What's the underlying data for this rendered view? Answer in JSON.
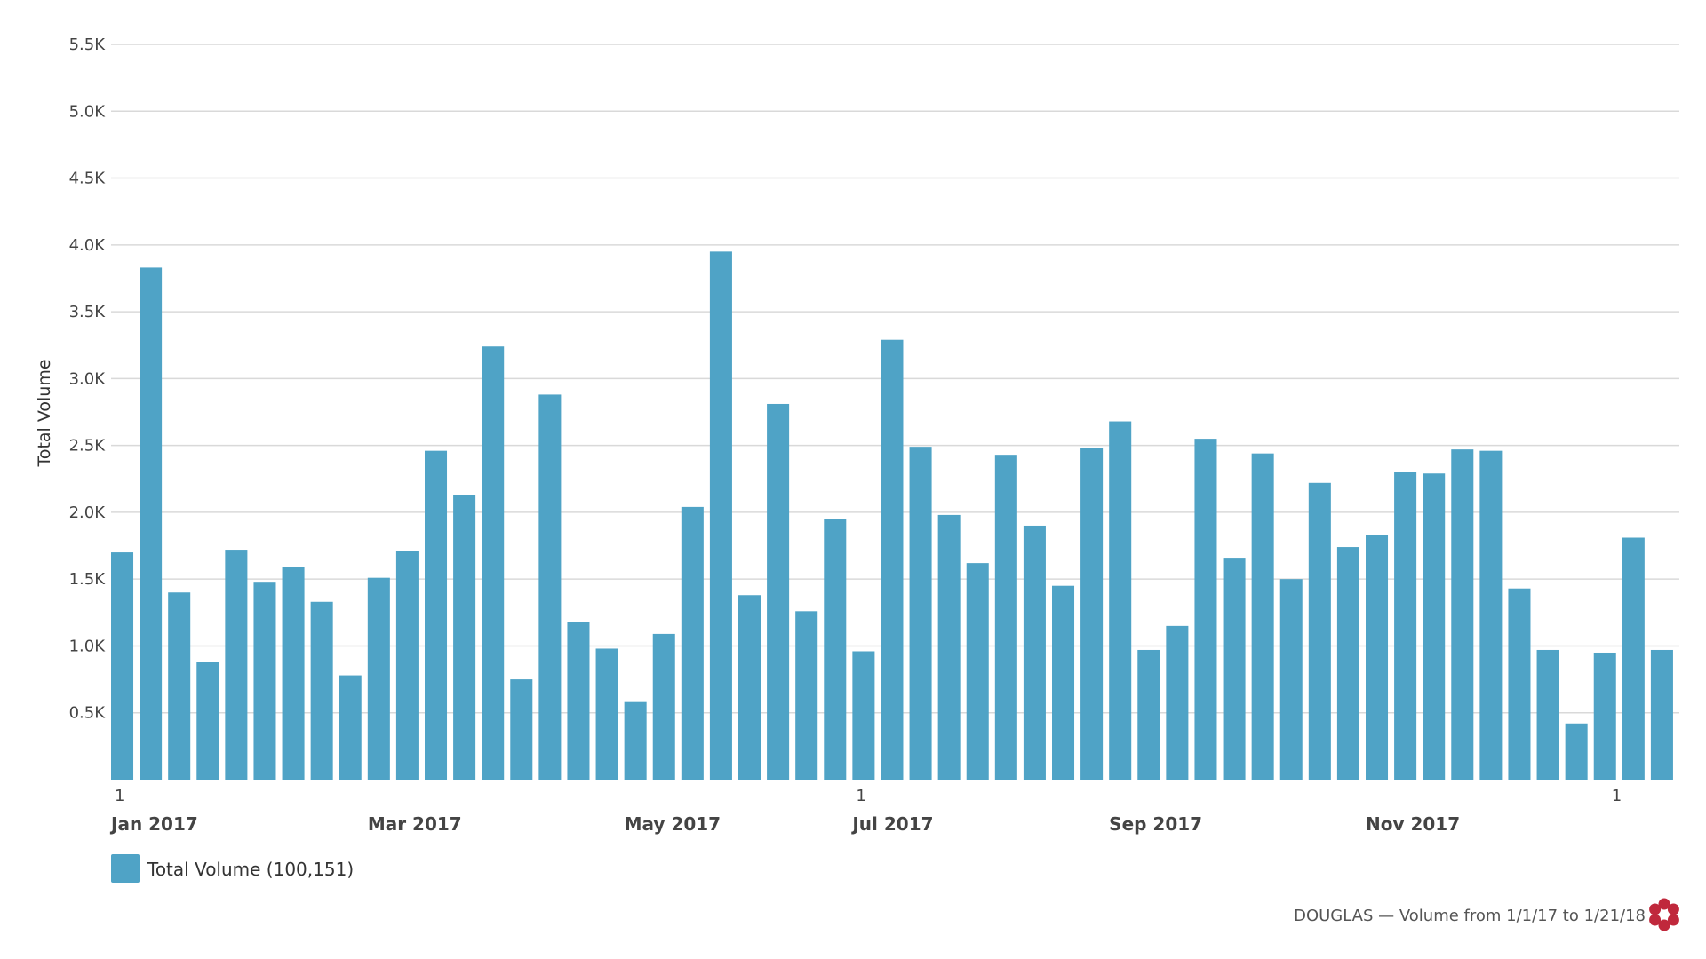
{
  "chart_data": {
    "type": "bar",
    "ylabel": "Total Volume",
    "ylim": [
      0,
      5500
    ],
    "yticks": [
      500,
      1000,
      1500,
      2000,
      2500,
      3000,
      3500,
      4000,
      4500,
      5000,
      5500
    ],
    "ytick_labels": [
      "0.5K",
      "1.0K",
      "1.5K",
      "2.0K",
      "2.5K",
      "3.0K",
      "3.5K",
      "4.0K",
      "4.5K",
      "5.0K",
      "5.5K"
    ],
    "grid": true,
    "x_ticks": [
      {
        "label": "1",
        "month": "Jan 2017",
        "bar_index": 0
      },
      {
        "label": "",
        "month": "Mar 2017",
        "bar_index": 9
      },
      {
        "label": "",
        "month": "May 2017",
        "bar_index": 18
      },
      {
        "label": "1",
        "month": "Jul 2017",
        "bar_index": 26
      },
      {
        "label": "",
        "month": "Sep 2017",
        "bar_index": 35
      },
      {
        "label": "",
        "month": "Nov 2017",
        "bar_index": 44
      },
      {
        "label": "1",
        "month": "",
        "bar_index": 52.5
      }
    ],
    "series": [
      {
        "name": "Total Volume (100,151)",
        "color": "#4fa3c6",
        "values": [
          1700,
          3830,
          1400,
          880,
          1720,
          1480,
          1590,
          1330,
          780,
          1510,
          1710,
          2460,
          2130,
          3240,
          750,
          2880,
          1180,
          980,
          580,
          1090,
          2040,
          3950,
          1380,
          2810,
          1260,
          1950,
          960,
          3290,
          2490,
          1980,
          1620,
          2430,
          1900,
          1450,
          2480,
          2680,
          970,
          1150,
          2550,
          1660,
          2440,
          1500,
          2220,
          1740,
          1830,
          2300,
          2290,
          2470,
          2460,
          1430,
          970,
          420,
          950,
          1810,
          970
        ]
      }
    ],
    "legend": {
      "label": "Total Volume (100,151)",
      "color": "#4fa3c6",
      "placement": "bottom-left"
    },
    "credit": "DOUGLAS — Volume from 1/1/17 to 1/21/18",
    "logo_color": "#c0283c"
  }
}
